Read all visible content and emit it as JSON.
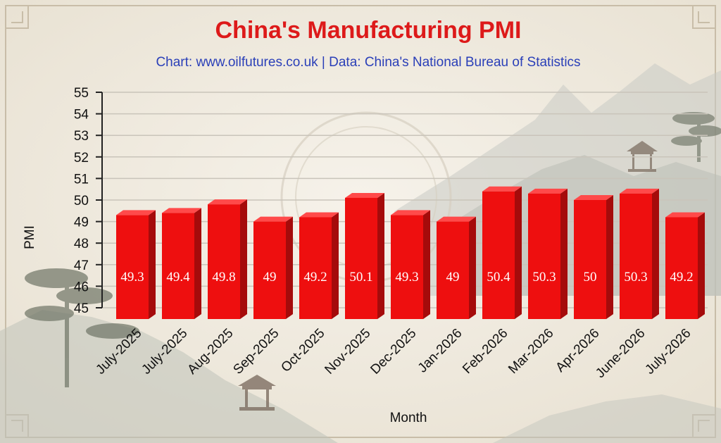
{
  "chart_data": {
    "type": "bar",
    "title": "China's Manufacturing PMI",
    "subtitle": "Chart: www.oilfutures.co.uk | Data: China's National Bureau of Statistics",
    "xlabel": "Month",
    "ylabel": "PMI",
    "ylim": [
      45,
      55
    ],
    "yticks": [
      45,
      46,
      47,
      48,
      49,
      50,
      51,
      52,
      53,
      54,
      55
    ],
    "categories": [
      "July-2025",
      "July-2025",
      "Aug-2025",
      "Sep-2025",
      "Oct-2025",
      "Nov-2025",
      "Dec-2025",
      "Jan-2026",
      "Feb-2026",
      "Mar-2026",
      "Apr-2026",
      "June-2026",
      "July-2026"
    ],
    "values": [
      49.3,
      49.4,
      49.8,
      49,
      49.2,
      50.1,
      49.3,
      49,
      50.4,
      50.3,
      50,
      50.3,
      49.2
    ],
    "value_labels": [
      "49.3",
      "49.4",
      "49.8",
      "49",
      "49.2",
      "50.1",
      "49.3",
      "49",
      "50.4",
      "50.3",
      "50",
      "50.3",
      "49.2"
    ],
    "grid": true,
    "colors": {
      "bar_front": "#ee0f0f",
      "bar_top": "#ff4a4a",
      "bar_side": "#a50b0b",
      "title": "#dd1a1a",
      "subtitle": "#2a3fb8",
      "grid": "#c9c4ba"
    }
  }
}
